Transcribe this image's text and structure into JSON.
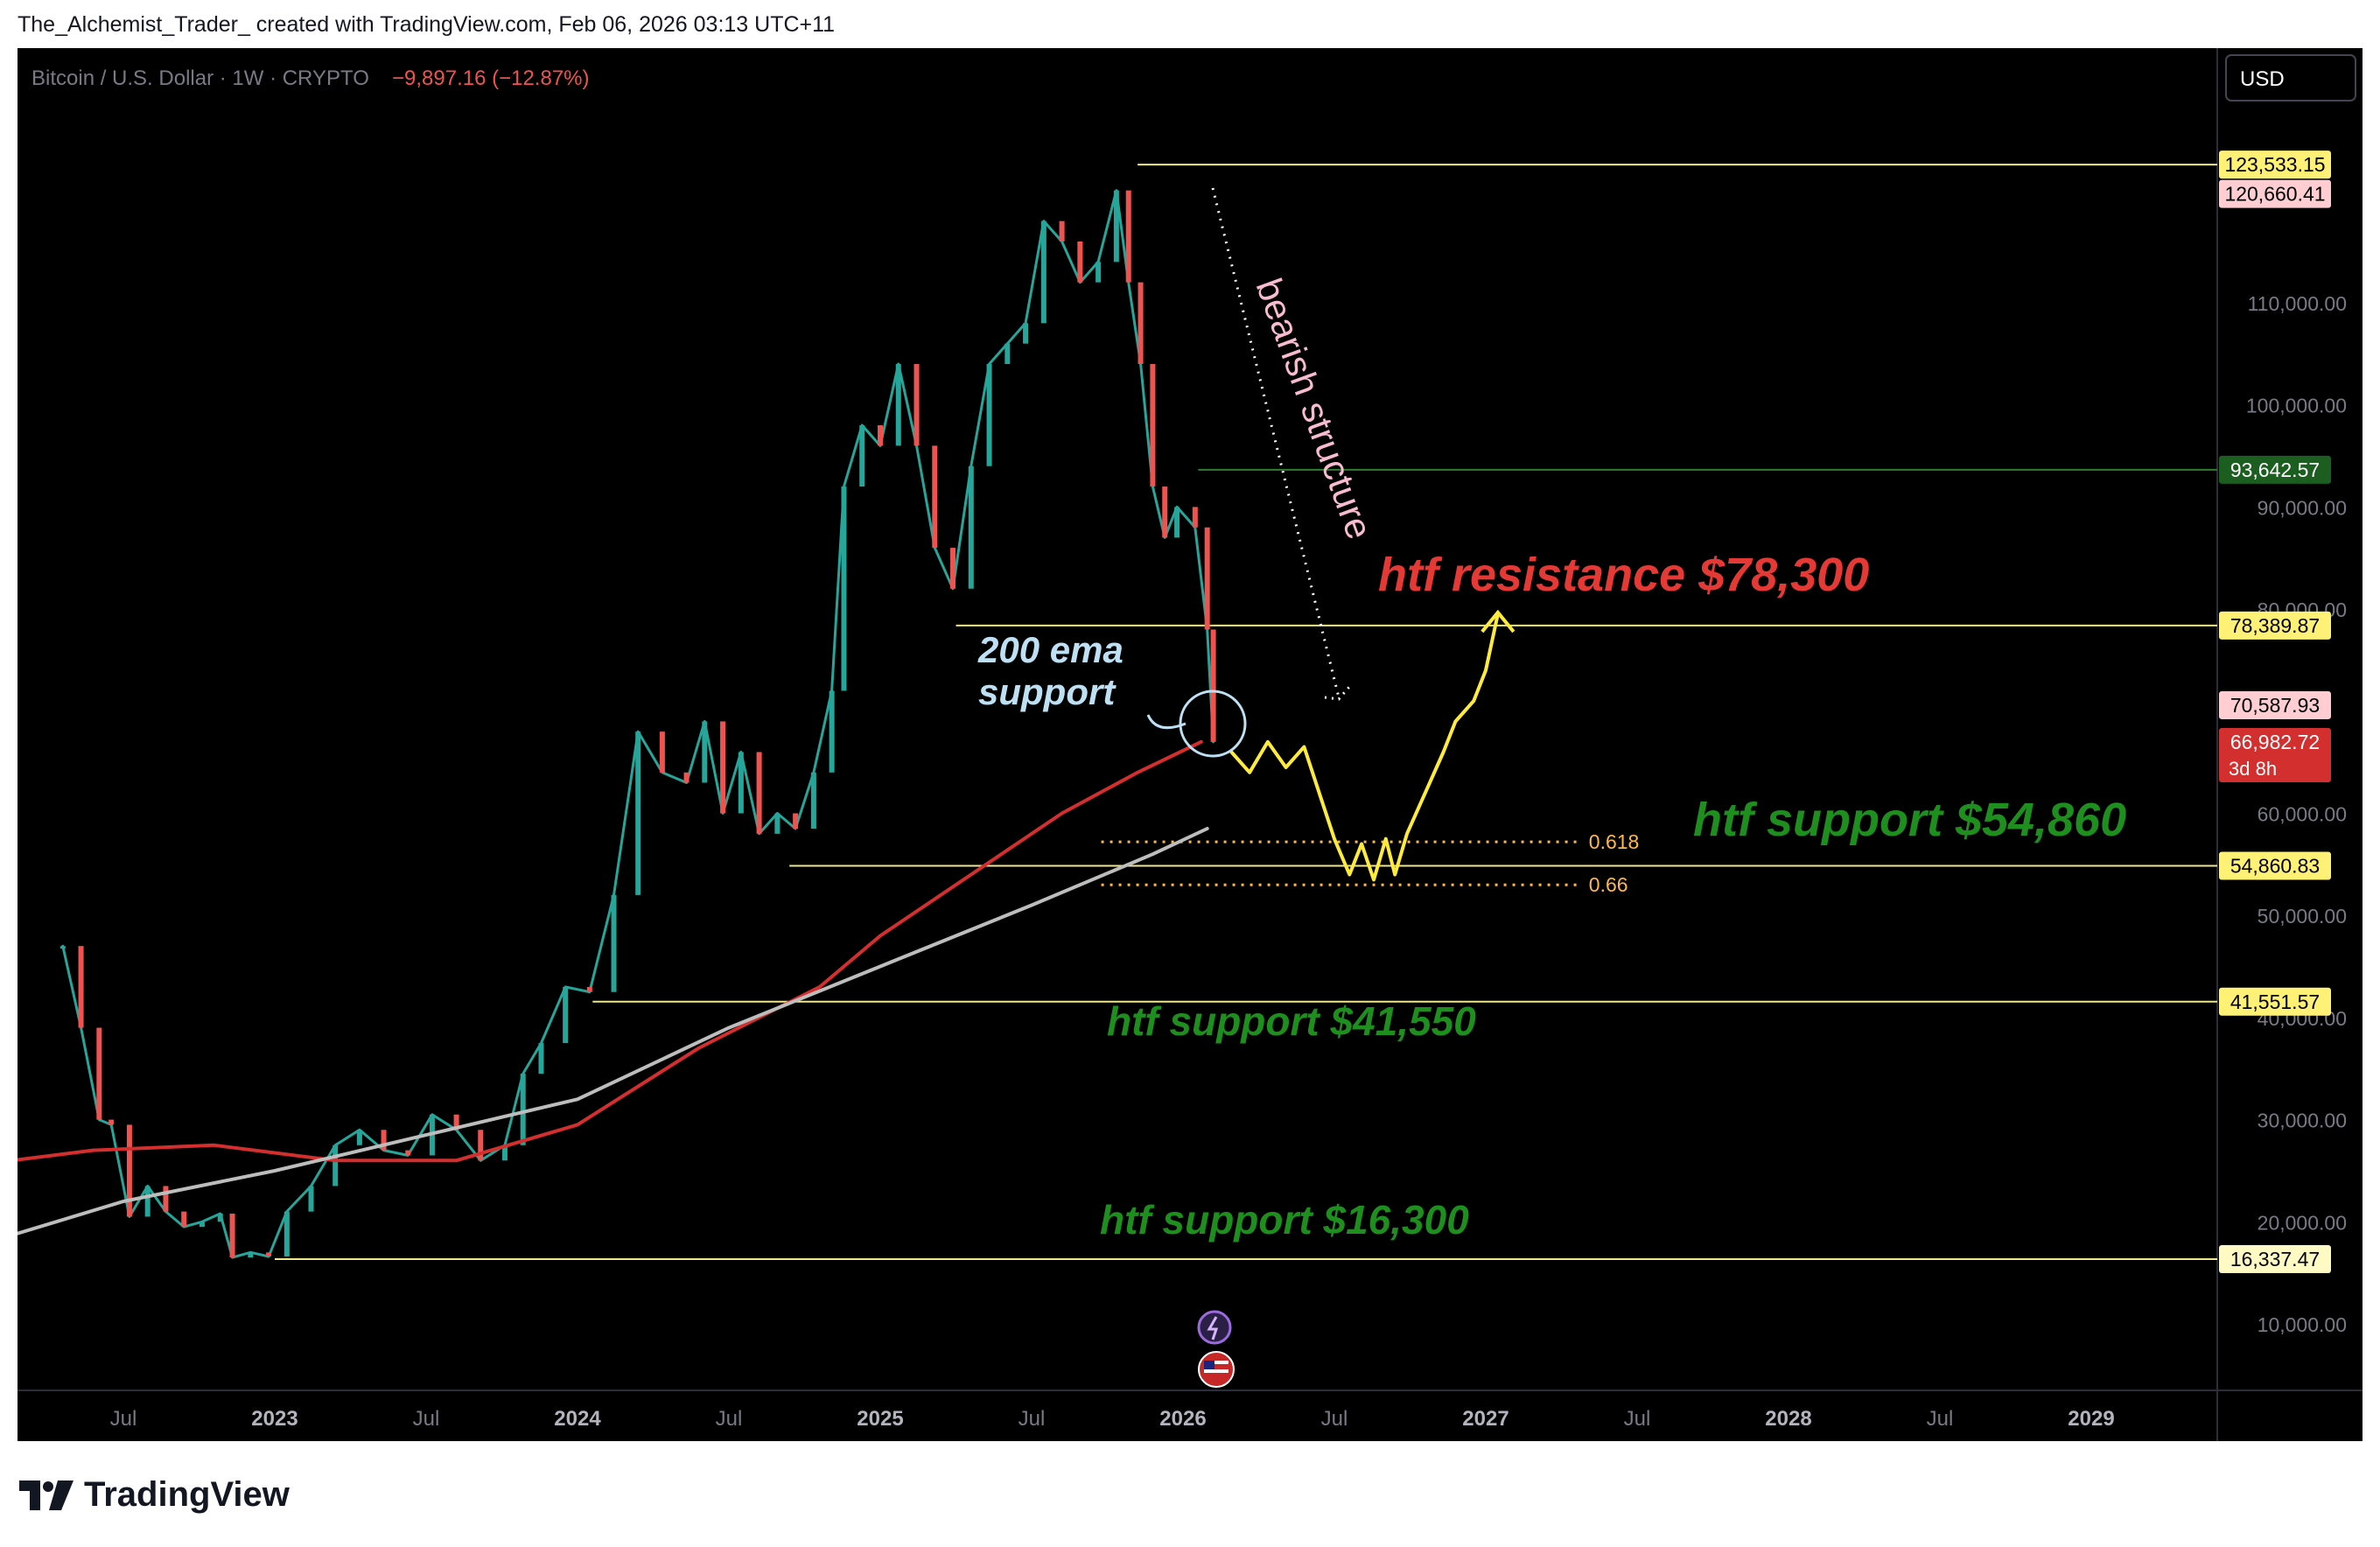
{
  "header": {
    "caption": "The_Alchemist_Trader_ created with TradingView.com, Feb 06, 2026 03:13 UTC+11"
  },
  "brand": {
    "name": "TradingView",
    "logo_icon": "tradingview-logo-icon"
  },
  "chart_data": {
    "type": "line",
    "symbol_title": "Bitcoin / U.S. Dollar · 1W · CRYPTO",
    "change_text": "−9,897.16 (−12.87%)",
    "currency_button": "USD",
    "ylim": [
      0,
      140000
    ],
    "y_ticks": [
      {
        "value": 10000,
        "label": "10,000.00"
      },
      {
        "value": 20000,
        "label": "20,000.00"
      },
      {
        "value": 30000,
        "label": "30,000.00"
      },
      {
        "value": 40000,
        "label": "40,000.00"
      },
      {
        "value": 50000,
        "label": "50,000.00"
      },
      {
        "value": 60000,
        "label": "60,000.00"
      },
      {
        "value": 80000,
        "label": "80,000.00"
      },
      {
        "value": 90000,
        "label": "90,000.00"
      },
      {
        "value": 100000,
        "label": "100,000.00"
      },
      {
        "value": 110000,
        "label": "110,000.00"
      }
    ],
    "x_ticks": [
      {
        "t": 2022.5,
        "label": "Jul",
        "bold": false
      },
      {
        "t": 2023.0,
        "label": "2023",
        "bold": true
      },
      {
        "t": 2023.5,
        "label": "Jul",
        "bold": false
      },
      {
        "t": 2024.0,
        "label": "2024",
        "bold": true
      },
      {
        "t": 2024.5,
        "label": "Jul",
        "bold": false
      },
      {
        "t": 2025.0,
        "label": "2025",
        "bold": true
      },
      {
        "t": 2025.5,
        "label": "Jul",
        "bold": false
      },
      {
        "t": 2026.0,
        "label": "2026",
        "bold": true
      },
      {
        "t": 2026.5,
        "label": "Jul",
        "bold": false
      },
      {
        "t": 2027.0,
        "label": "2027",
        "bold": true
      },
      {
        "t": 2027.5,
        "label": "Jul",
        "bold": false
      },
      {
        "t": 2028.0,
        "label": "2028",
        "bold": true
      },
      {
        "t": 2028.5,
        "label": "Jul",
        "bold": false
      },
      {
        "t": 2029.0,
        "label": "2029",
        "bold": true
      }
    ],
    "price_tags": [
      {
        "value": 123533.15,
        "label": "123,533.15",
        "bg": "#fff176",
        "fg": "#000000"
      },
      {
        "value": 120660.41,
        "label": "120,660.41",
        "bg": "#ffcdd2",
        "fg": "#000000"
      },
      {
        "value": 93642.57,
        "label": "93,642.57",
        "bg": "#1b5e20",
        "fg": "#ffffff"
      },
      {
        "value": 78389.87,
        "label": "78,389.87",
        "bg": "#fff176",
        "fg": "#000000"
      },
      {
        "value": 70587.93,
        "label": "70,587.93",
        "bg": "#ffcdd2",
        "fg": "#000000"
      },
      {
        "value": 66982.72,
        "label": "66,982.72",
        "sublabel": "3d 8h",
        "bg": "#d32f2f",
        "fg": "#ffffff"
      },
      {
        "value": 54860.83,
        "label": "54,860.83",
        "bg": "#fff176",
        "fg": "#000000"
      },
      {
        "value": 41551.57,
        "label": "41,551.57",
        "bg": "#fff176",
        "fg": "#000000"
      },
      {
        "value": 16337.47,
        "label": "16,337.47",
        "bg": "#fff9c4",
        "fg": "#000000"
      }
    ],
    "horizontal_levels": [
      {
        "value": 123533.15,
        "from": 2025.85,
        "color": "#f0e68c"
      },
      {
        "value": 93642.57,
        "from": 2026.05,
        "color": "#2e7d32"
      },
      {
        "value": 78389.87,
        "from": 2025.25,
        "color": "#f0e68c"
      },
      {
        "value": 54860.83,
        "from": 2024.7,
        "color": "#f0e68c"
      },
      {
        "value": 41551.57,
        "from": 2024.05,
        "color": "#f0e68c"
      },
      {
        "value": 16337.47,
        "from": 2023.0,
        "color": "#f0e68c"
      }
    ],
    "fib_levels": [
      {
        "value": 57200,
        "label": "0.618",
        "from": 2025.73,
        "to": 2027.3
      },
      {
        "value": 53000,
        "label": "0.66",
        "from": 2025.73,
        "to": 2027.3
      }
    ],
    "annotations": [
      {
        "text": "htf resistance $78,300",
        "color": "#e53935"
      },
      {
        "text": "htf support $54,860",
        "color": "#1e8e1e"
      },
      {
        "text": "htf support $41,550",
        "color": "#1e8e1e"
      },
      {
        "text": "htf support $16,300",
        "color": "#1e8e1e"
      },
      {
        "text": "bearish structure",
        "color": "#f8bbd0"
      },
      {
        "text": "200 ema",
        "color": "#bde0f5"
      },
      {
        "text": "support",
        "color": "#bde0f5"
      }
    ],
    "series": [
      {
        "name": "",
        "kind": "price",
        "color": "#26a69a",
        "points": [
          [
            2022.3,
            47000
          ],
          [
            2022.36,
            39000
          ],
          [
            2022.42,
            30000
          ],
          [
            2022.46,
            29500
          ],
          [
            2022.52,
            20500
          ],
          [
            2022.58,
            23500
          ],
          [
            2022.64,
            21000
          ],
          [
            2022.7,
            19500
          ],
          [
            2022.76,
            20000
          ],
          [
            2022.82,
            20800
          ],
          [
            2022.86,
            16500
          ],
          [
            2022.92,
            17000
          ],
          [
            2022.98,
            16600
          ],
          [
            2023.04,
            21000
          ],
          [
            2023.12,
            23500
          ],
          [
            2023.2,
            27500
          ],
          [
            2023.28,
            29000
          ],
          [
            2023.36,
            27000
          ],
          [
            2023.44,
            26500
          ],
          [
            2023.52,
            30500
          ],
          [
            2023.6,
            29000
          ],
          [
            2023.68,
            26000
          ],
          [
            2023.76,
            27500
          ],
          [
            2023.82,
            34500
          ],
          [
            2023.88,
            37500
          ],
          [
            2023.96,
            43000
          ],
          [
            2024.04,
            42500
          ],
          [
            2024.12,
            52000
          ],
          [
            2024.2,
            68000
          ],
          [
            2024.28,
            64000
          ],
          [
            2024.36,
            63000
          ],
          [
            2024.42,
            69000
          ],
          [
            2024.48,
            60000
          ],
          [
            2024.54,
            66000
          ],
          [
            2024.6,
            58000
          ],
          [
            2024.66,
            60000
          ],
          [
            2024.72,
            58500
          ],
          [
            2024.78,
            64000
          ],
          [
            2024.84,
            72000
          ],
          [
            2024.88,
            92000
          ],
          [
            2024.94,
            98000
          ],
          [
            2025.0,
            96000
          ],
          [
            2025.06,
            104000
          ],
          [
            2025.12,
            96000
          ],
          [
            2025.18,
            86000
          ],
          [
            2025.24,
            82000
          ],
          [
            2025.3,
            94000
          ],
          [
            2025.36,
            104000
          ],
          [
            2025.42,
            106000
          ],
          [
            2025.48,
            108000
          ],
          [
            2025.54,
            118000
          ],
          [
            2025.6,
            116000
          ],
          [
            2025.66,
            112000
          ],
          [
            2025.72,
            114000
          ],
          [
            2025.78,
            121000
          ],
          [
            2025.82,
            112000
          ],
          [
            2025.86,
            104000
          ],
          [
            2025.9,
            92000
          ],
          [
            2025.94,
            87000
          ],
          [
            2025.98,
            90000
          ],
          [
            2026.04,
            88000
          ],
          [
            2026.08,
            78000
          ],
          [
            2026.1,
            67000
          ]
        ]
      },
      {
        "name": "",
        "kind": "ema200",
        "color": "#d32f2f",
        "points": [
          [
            2022.0,
            25500
          ],
          [
            2022.4,
            27000
          ],
          [
            2022.8,
            27500
          ],
          [
            2023.2,
            26000
          ],
          [
            2023.6,
            26000
          ],
          [
            2024.0,
            29500
          ],
          [
            2024.4,
            37000
          ],
          [
            2024.8,
            43000
          ],
          [
            2025.0,
            48000
          ],
          [
            2025.3,
            54000
          ],
          [
            2025.6,
            60000
          ],
          [
            2025.85,
            64000
          ],
          [
            2026.06,
            67000
          ]
        ]
      },
      {
        "name": "",
        "kind": "sma",
        "color": "#bdbdbd",
        "points": [
          [
            2022.0,
            17500
          ],
          [
            2022.5,
            22000
          ],
          [
            2023.0,
            25000
          ],
          [
            2023.5,
            28500
          ],
          [
            2024.0,
            32000
          ],
          [
            2024.5,
            39000
          ],
          [
            2025.0,
            45000
          ],
          [
            2025.5,
            51000
          ],
          [
            2025.9,
            56000
          ],
          [
            2026.08,
            58500
          ]
        ]
      },
      {
        "name": "",
        "kind": "projection",
        "color": "#ffeb3b",
        "points": [
          [
            2026.16,
            66000
          ],
          [
            2026.22,
            64000
          ],
          [
            2026.28,
            67000
          ],
          [
            2026.34,
            64500
          ],
          [
            2026.4,
            66500
          ],
          [
            2026.45,
            62000
          ],
          [
            2026.5,
            57500
          ],
          [
            2026.55,
            54000
          ],
          [
            2026.59,
            57000
          ],
          [
            2026.63,
            53500
          ],
          [
            2026.67,
            57500
          ],
          [
            2026.7,
            54000
          ],
          [
            2026.74,
            58000
          ],
          [
            2026.8,
            62000
          ],
          [
            2026.86,
            66000
          ],
          [
            2026.9,
            69000
          ],
          [
            2026.96,
            71000
          ],
          [
            2027.0,
            74000
          ],
          [
            2027.04,
            79500
          ]
        ]
      }
    ]
  }
}
